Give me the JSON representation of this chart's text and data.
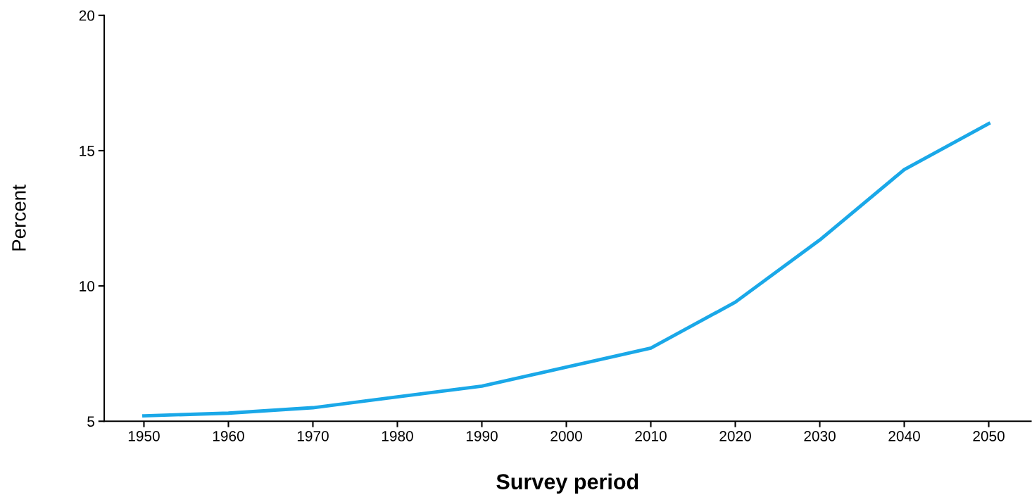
{
  "chart_data": {
    "type": "line",
    "xlabel": "Survey period",
    "ylabel": "Percent",
    "x": [
      1950,
      1960,
      1970,
      1980,
      1990,
      2000,
      2010,
      2020,
      2030,
      2040,
      2050
    ],
    "series": [
      {
        "color": "#1aa8e8",
        "values": [
          5.2,
          5.3,
          5.5,
          5.9,
          6.3,
          7.0,
          7.7,
          9.4,
          11.7,
          14.3,
          16.0
        ]
      }
    ],
    "xlim": [
      1945.3,
      2055
    ],
    "xticks": [
      1950,
      1960,
      1970,
      1980,
      1990,
      2000,
      2010,
      2020,
      2030,
      2040,
      2050
    ],
    "ylim": [
      5,
      20
    ],
    "yticks": [
      5,
      10,
      15,
      20
    ],
    "grid": false,
    "legend": false,
    "marker": "none",
    "line_style": "solid"
  }
}
